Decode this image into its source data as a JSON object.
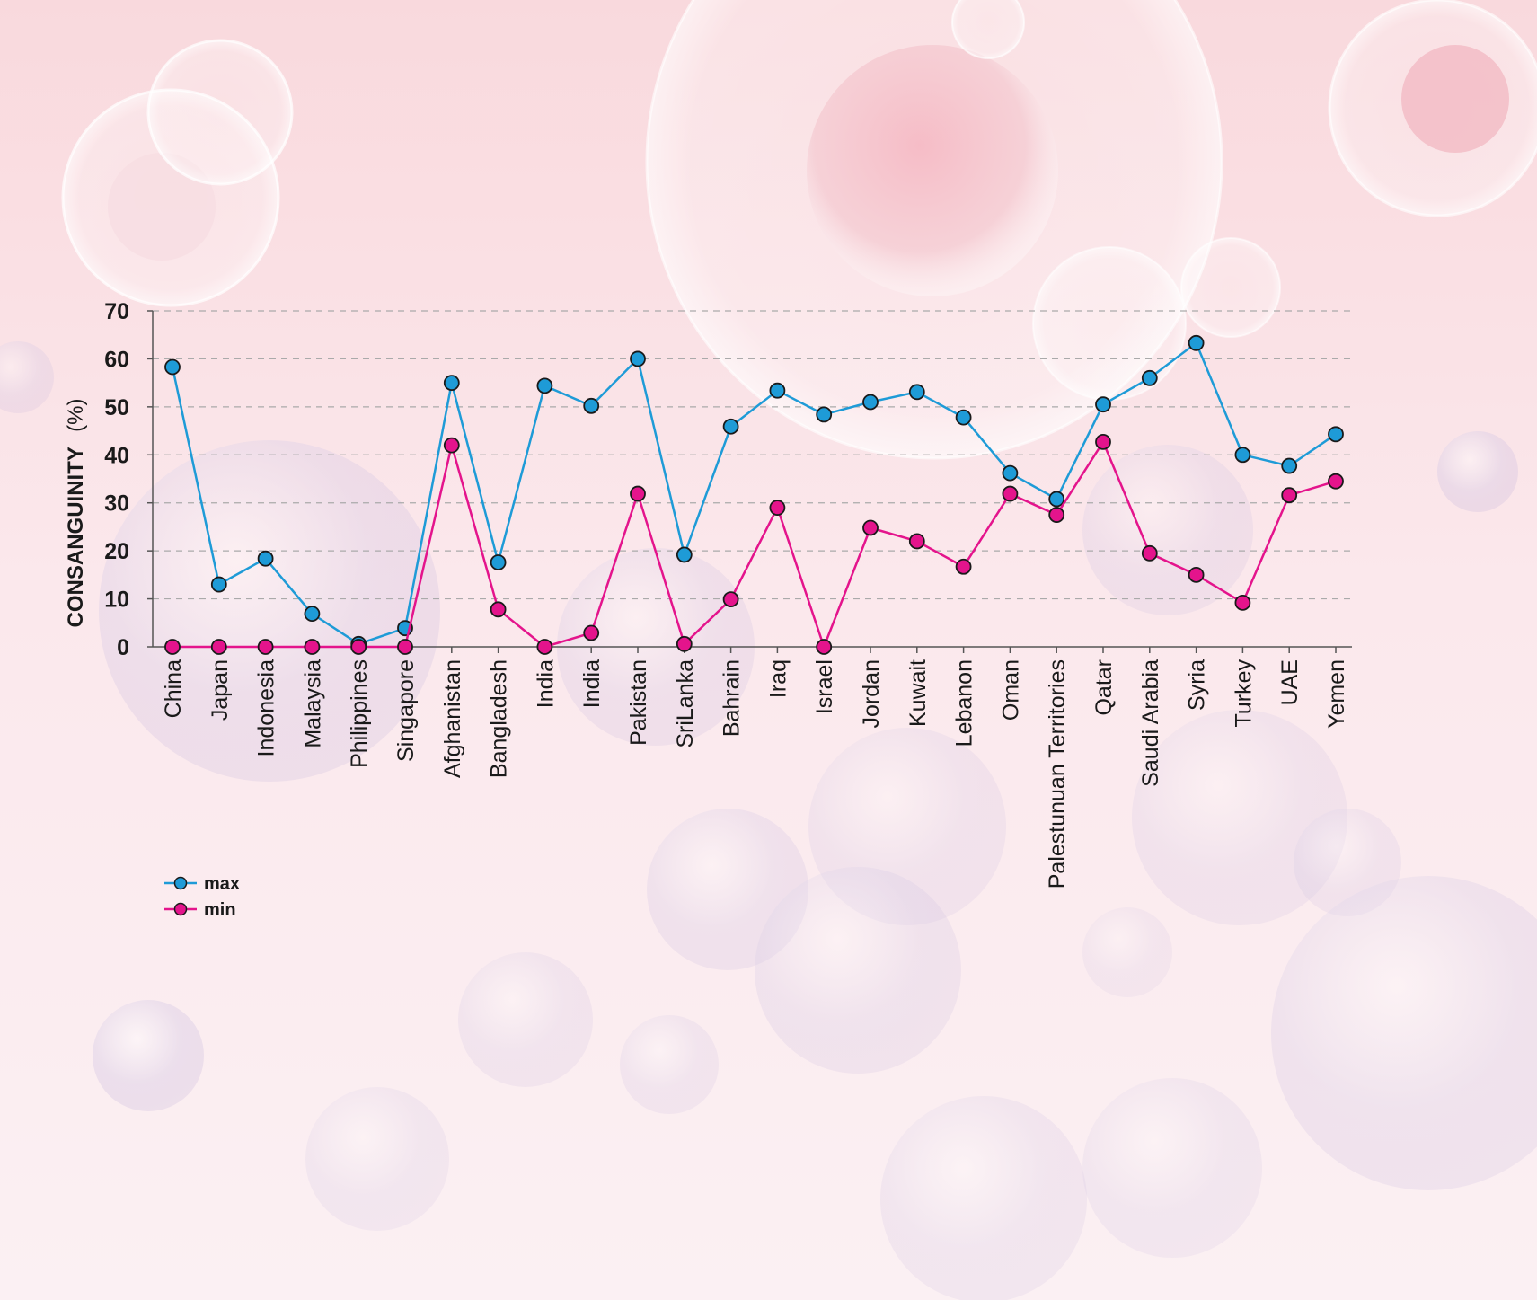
{
  "chart_data": {
    "type": "line",
    "ylabel": "CONSANGUINITY",
    "ylabel_unit": "(%)",
    "ylim": [
      0,
      70
    ],
    "yticks": [
      0,
      10,
      20,
      30,
      40,
      50,
      60,
      70
    ],
    "grid": "horizontal-dashed",
    "legend_position": "bottom-left",
    "categories": [
      "China",
      "Japan",
      "Indonesia",
      "Malaysia",
      "Philippines",
      "Singapore",
      "Afghanistan",
      "Bangladesh",
      "India",
      "India",
      "Pakistan",
      "SriLanka",
      "Bahrain",
      "Iraq",
      "Israel",
      "Jordan",
      "Kuwait",
      "Lebanon",
      "Oman",
      "Palestunuan Territories",
      "Qatar",
      "Saudi Arabia",
      "Syria",
      "Turkey",
      "UAE",
      "Yemen"
    ],
    "series": [
      {
        "name": "max",
        "color": "#1e9bd7",
        "values": [
          58.3,
          13.0,
          18.4,
          6.9,
          0.6,
          3.9,
          55.0,
          17.6,
          54.4,
          50.2,
          60.0,
          19.2,
          45.9,
          53.4,
          48.4,
          51.0,
          53.1,
          47.8,
          36.2,
          30.8,
          50.5,
          56.0,
          63.3,
          40.0,
          37.7,
          44.3
        ]
      },
      {
        "name": "min",
        "color": "#e4148c",
        "values": [
          0,
          0,
          0,
          0,
          0,
          0,
          42.0,
          7.8,
          0,
          2.9,
          31.9,
          0.6,
          9.9,
          29.0,
          0,
          24.8,
          22.0,
          16.7,
          31.9,
          27.5,
          42.7,
          19.5,
          15.0,
          9.2,
          31.6,
          34.5
        ]
      }
    ]
  },
  "colors": {
    "axis": "#555555",
    "grid": "#aaaaaa",
    "text": "#1a1a1a",
    "marker_stroke": "#1a1a1a",
    "background": "#fbeef2"
  }
}
